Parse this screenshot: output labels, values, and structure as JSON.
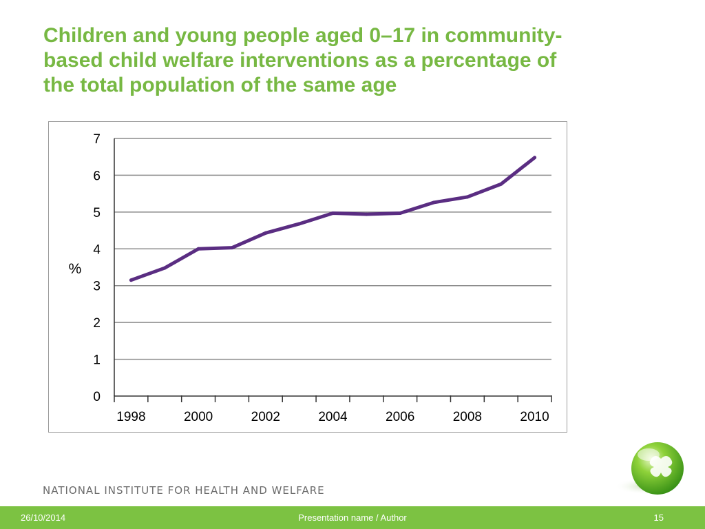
{
  "title_lines": [
    "Children and young people aged 0–17 in community-",
    "based child welfare interventions as a percentage of",
    "the total population of the same age"
  ],
  "footer": {
    "organization": "NATIONAL INSTITUTE FOR HEALTH AND WELFARE",
    "date": "26/10/2014",
    "presentation": "Presentation name / Author",
    "page": "15"
  },
  "colors": {
    "title": "#77b843",
    "footer_bar": "#7cc242",
    "series_line": "#5a2d82",
    "grid": "#8c8c8c"
  },
  "chart_data": {
    "type": "line",
    "ylabel": "%",
    "xlabel": "",
    "ylim": [
      0,
      7
    ],
    "y_ticks": [
      "0",
      "1",
      "2",
      "3",
      "4",
      "5",
      "6",
      "7"
    ],
    "x_tick_labels": [
      "1998",
      "2000",
      "2002",
      "2004",
      "2006",
      "2008",
      "2010"
    ],
    "x": [
      1998,
      1999,
      2000,
      2001,
      2002,
      2003,
      2004,
      2005,
      2006,
      2007,
      2008,
      2009,
      2010
    ],
    "series": [
      {
        "values": [
          3.15,
          3.48,
          4.0,
          4.03,
          4.43,
          4.68,
          4.97,
          4.94,
          4.97,
          5.26,
          5.41,
          5.76,
          6.48
        ]
      }
    ],
    "grid": true
  }
}
